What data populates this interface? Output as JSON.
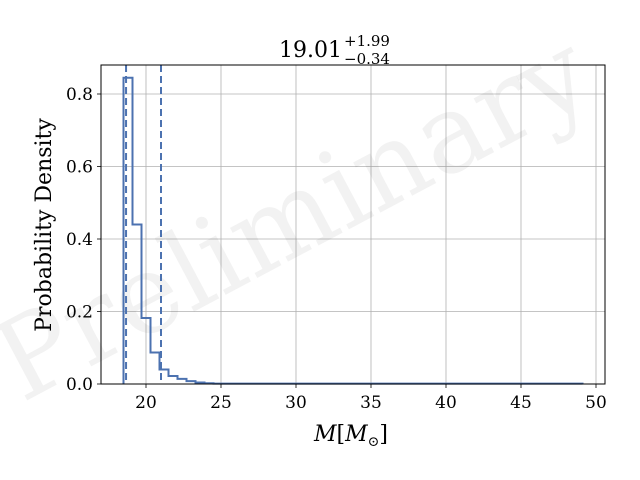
{
  "chart_data": {
    "type": "histogram",
    "title": {
      "main": "19.01",
      "upper": "+1.99",
      "lower": "−0.34"
    },
    "xlabel": {
      "var": "M",
      "unit": "M",
      "unit_sub": "⊙"
    },
    "ylabel": "Probability Density",
    "watermark": "Preliminary",
    "xlim": [
      17.0,
      50.6
    ],
    "ylim": [
      0,
      0.88
    ],
    "xticks": [
      20,
      25,
      30,
      35,
      40,
      45,
      50
    ],
    "xtick_labels": [
      "20",
      "25",
      "30",
      "35",
      "40",
      "45",
      "50"
    ],
    "yticks": [
      0.0,
      0.2,
      0.4,
      0.6,
      0.8
    ],
    "ytick_labels": [
      "0.0",
      "0.2",
      "0.4",
      "0.6",
      "0.8"
    ],
    "grid": true,
    "color": "#4c72b0",
    "bin_edges": [
      18.5,
      19.1,
      19.7,
      20.3,
      20.9,
      21.5,
      22.1,
      22.7,
      23.3,
      23.9,
      24.5,
      49.1
    ],
    "densities": [
      0.845,
      0.44,
      0.182,
      0.087,
      0.04,
      0.022,
      0.014,
      0.008,
      0.004,
      0.002,
      0.001
    ],
    "credible_interval_lines": [
      18.67,
      21.0
    ]
  }
}
